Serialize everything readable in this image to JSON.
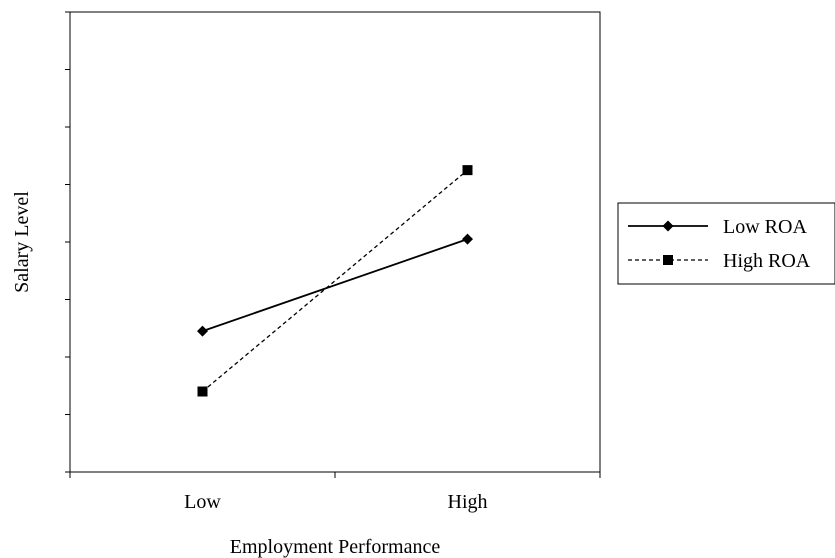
{
  "chart_data": {
    "type": "line",
    "title": "",
    "xlabel": "Employment Performance",
    "ylabel": "Salary Level",
    "categories": [
      "Low",
      "High"
    ],
    "series": [
      {
        "name": "Low ROA",
        "values": [
          2.45,
          4.05
        ],
        "marker": "diamond",
        "line_style": "solid"
      },
      {
        "name": "High ROA",
        "values": [
          1.4,
          5.25
        ],
        "marker": "square",
        "line_style": "dashed"
      }
    ],
    "ylim": [
      0,
      8
    ],
    "y_tick_count": 9,
    "y_tick_labels_shown": false,
    "grid": false,
    "legend_position": "right",
    "colors": {
      "line": "#000000",
      "background": "#ffffff"
    }
  }
}
